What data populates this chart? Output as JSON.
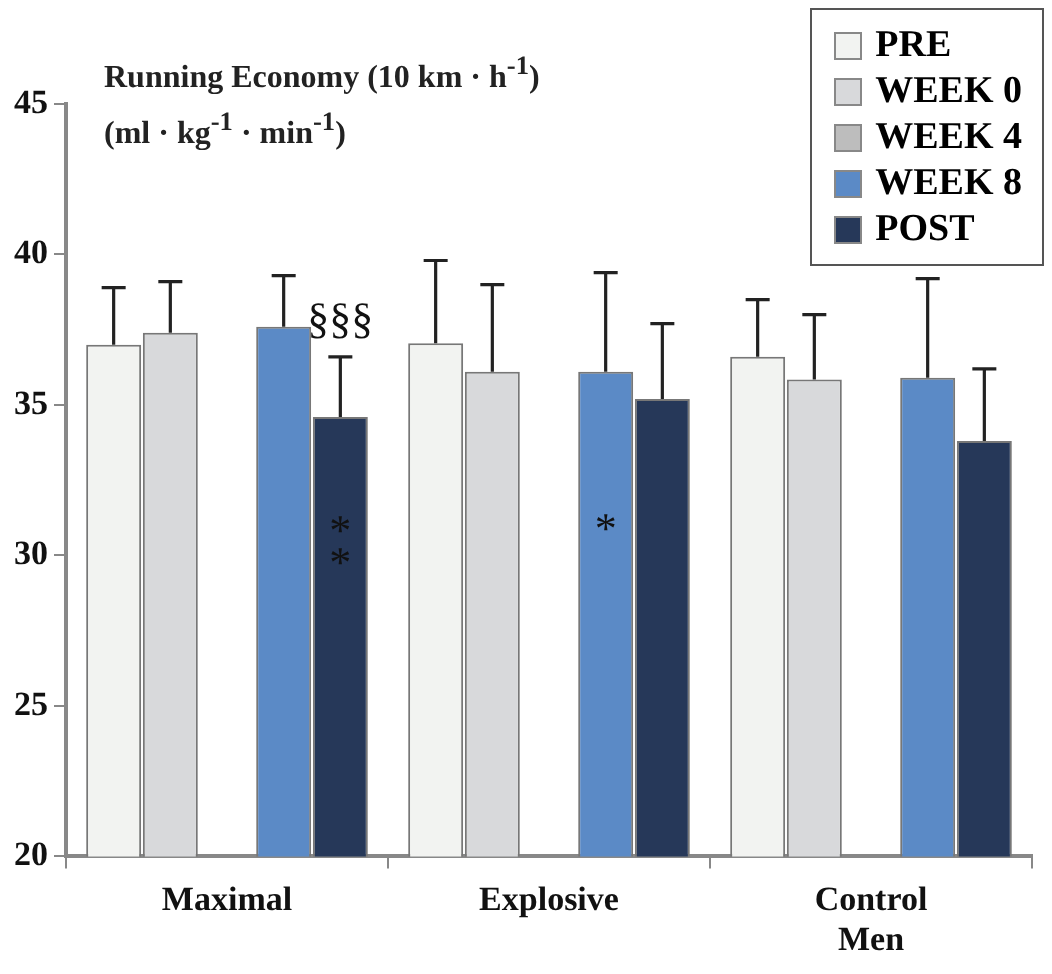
{
  "chart_data": {
    "type": "bar",
    "ylabel": "Running Economy (10 km · h$^{-1}$) (ml · kg$^{-1}$ · min$^{-1}$)",
    "categories": [
      "Maximal",
      "Explosive",
      "Control Men"
    ],
    "series": [
      {
        "name": "PRE",
        "color": "#f2f3f1",
        "values": [
          37.0,
          37.05,
          36.6
        ],
        "errors": [
          [
            37.0,
            38.9
          ],
          [
            37.05,
            39.8
          ],
          [
            36.6,
            38.5
          ]
        ]
      },
      {
        "name": "WEEK 0",
        "color": "#d8d9db",
        "values": [
          37.4,
          36.1,
          35.85
        ],
        "errors": [
          [
            37.4,
            39.1
          ],
          [
            36.1,
            39.0
          ],
          [
            35.85,
            38.0
          ]
        ]
      },
      {
        "name": "WEEK 4",
        "color": "#bdbdbd",
        "values": [
          null,
          null,
          null
        ]
      },
      {
        "name": "WEEK 8",
        "color": "#5b8ac6",
        "values": [
          37.6,
          36.1,
          35.9
        ],
        "errors": [
          [
            37.6,
            39.3
          ],
          [
            36.1,
            39.4
          ],
          [
            35.9,
            39.2
          ]
        ]
      },
      {
        "name": "POST",
        "color": "#263859",
        "values": [
          34.6,
          35.2,
          33.8
        ],
        "errors": [
          [
            34.6,
            36.6
          ],
          [
            35.2,
            37.7
          ],
          [
            33.8,
            36.2
          ]
        ]
      }
    ],
    "ylim": [
      20,
      45
    ],
    "yticks": [
      20,
      25,
      30,
      35,
      40,
      45
    ],
    "grid": false,
    "legend": "top right",
    "annotations": [
      "§§§",
      "**",
      "*"
    ]
  }
}
